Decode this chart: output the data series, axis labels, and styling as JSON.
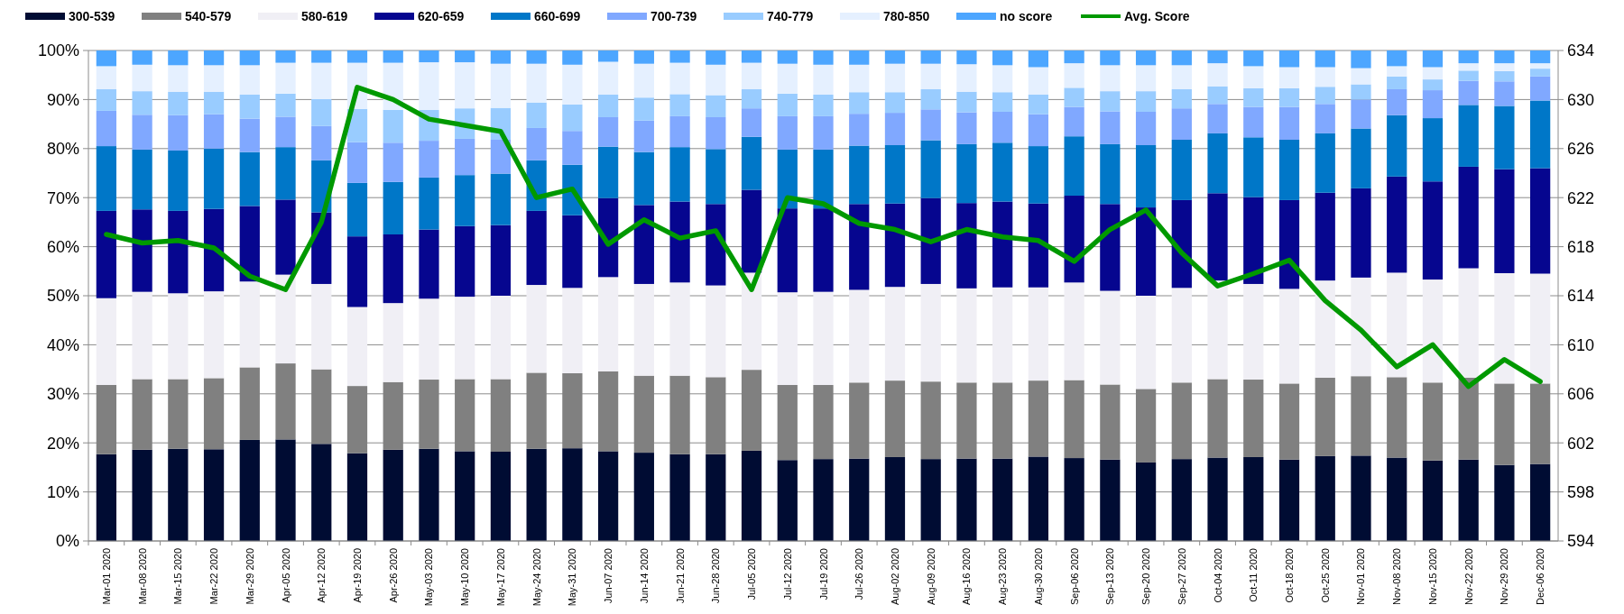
{
  "chart_data": {
    "type": "bar",
    "stacked": true,
    "grid": "y",
    "legend": "top",
    "categories": [
      "Mar-01 2020",
      "Mar-08 2020",
      "Mar-15 2020",
      "Mar-22 2020",
      "Mar-29 2020",
      "Apr-05 2020",
      "Apr-12 2020",
      "Apr-19 2020",
      "Apr-26 2020",
      "May-03 2020",
      "May-10 2020",
      "May-17 2020",
      "May-24 2020",
      "May-31 2020",
      "Jun-07 2020",
      "Jun-14 2020",
      "Jun-21 2020",
      "Jun-28 2020",
      "Jul-05 2020",
      "Jul-12 2020",
      "Jul-19 2020",
      "Jul-26 2020",
      "Aug-02 2020",
      "Aug-09 2020",
      "Aug-16 2020",
      "Aug-23 2020",
      "Aug-30 2020",
      "Sep-06 2020",
      "Sep-13 2020",
      "Sep-20 2020",
      "Sep-27 2020",
      "Oct-04 2020",
      "Oct-11 2020",
      "Oct-18 2020",
      "Oct-25 2020",
      "Nov-01 2020",
      "Nov-08 2020",
      "Nov-15 2020",
      "Nov-22 2020",
      "Nov-29 2020",
      "Dec-06 2020"
    ],
    "ylim": [
      0,
      100
    ],
    "yticks": [
      {
        "value": 0,
        "label": "0%"
      },
      {
        "value": 10,
        "label": "10%"
      },
      {
        "value": 20,
        "label": "20%"
      },
      {
        "value": 30,
        "label": "30%"
      },
      {
        "value": 40,
        "label": "40%"
      },
      {
        "value": 50,
        "label": "50%"
      },
      {
        "value": 60,
        "label": "60%"
      },
      {
        "value": 70,
        "label": "70%"
      },
      {
        "value": 80,
        "label": "80%"
      },
      {
        "value": 90,
        "label": "90%"
      },
      {
        "value": 100,
        "label": "100%"
      }
    ],
    "y2lim": [
      594,
      634
    ],
    "y2ticks": [
      594,
      598,
      602,
      606,
      610,
      614,
      618,
      622,
      626,
      630,
      634
    ],
    "series": [
      {
        "name": "300-539",
        "color": "#000c33",
        "values": [
          17.7,
          18.6,
          18.8,
          18.7,
          20.6,
          20.7,
          19.8,
          17.9,
          18.6,
          18.8,
          18.3,
          18.2,
          18.8,
          18.9,
          18.3,
          18.0,
          17.7,
          17.7,
          18.4,
          16.5,
          16.7,
          16.8,
          17.1,
          16.7,
          16.8,
          16.8,
          17.2,
          16.9,
          16.6,
          16.0,
          16.7,
          17.0,
          17.1,
          16.6,
          17.3,
          17.4,
          17.0,
          16.4,
          16.6,
          15.5,
          15.7
        ]
      },
      {
        "name": "540-579",
        "color": "#808080",
        "values": [
          14.1,
          14.4,
          14.2,
          14.5,
          14.8,
          15.5,
          15.2,
          13.7,
          13.8,
          14.1,
          14.7,
          14.8,
          15.5,
          15.3,
          16.3,
          15.7,
          16.0,
          15.7,
          16.5,
          15.3,
          15.1,
          15.5,
          15.6,
          15.8,
          15.5,
          15.5,
          15.5,
          15.9,
          15.3,
          15.0,
          15.6,
          16.0,
          15.8,
          15.5,
          16.0,
          16.2,
          16.4,
          15.9,
          16.7,
          16.6,
          16.4
        ]
      },
      {
        "name": "580-619",
        "color": "#f0eff5",
        "values": [
          17.7,
          17.8,
          17.5,
          17.7,
          17.5,
          18.1,
          17.4,
          16.1,
          16.1,
          16.5,
          16.8,
          17.0,
          17.9,
          17.4,
          19.2,
          18.7,
          19.0,
          18.7,
          19.8,
          18.9,
          19.0,
          18.9,
          19.1,
          19.9,
          19.2,
          19.4,
          19.0,
          19.9,
          19.1,
          19.0,
          19.3,
          20.1,
          19.5,
          19.3,
          19.8,
          20.1,
          21.3,
          21.0,
          22.3,
          22.5,
          22.4
        ]
      },
      {
        "name": "620-659",
        "color": "#06068f",
        "values": [
          17.8,
          16.8,
          16.8,
          16.8,
          15.4,
          15.3,
          14.6,
          14.4,
          14.0,
          14.1,
          14.4,
          14.4,
          15.1,
          14.8,
          16.1,
          16.1,
          16.5,
          16.6,
          16.9,
          17.1,
          17.0,
          17.5,
          17.0,
          17.5,
          17.4,
          17.5,
          17.1,
          17.7,
          17.7,
          18.0,
          17.9,
          17.8,
          17.7,
          18.1,
          17.9,
          18.2,
          19.6,
          20.0,
          20.7,
          21.2,
          21.5
        ]
      },
      {
        "name": "660-699",
        "color": "#0077c8",
        "values": [
          13.2,
          12.2,
          12.3,
          12.3,
          11.0,
          10.7,
          10.6,
          10.9,
          10.7,
          10.6,
          10.4,
          10.5,
          10.3,
          10.3,
          10.5,
          10.8,
          11.1,
          11.2,
          10.8,
          12.0,
          12.0,
          11.9,
          11.9,
          11.8,
          12.0,
          12.0,
          11.7,
          12.1,
          12.2,
          12.7,
          12.3,
          12.2,
          12.2,
          12.3,
          12.1,
          12.2,
          12.5,
          12.9,
          12.6,
          12.9,
          13.8
        ]
      },
      {
        "name": "700-739",
        "color": "#80a8ff",
        "values": [
          7.2,
          7.1,
          7.2,
          7.0,
          6.8,
          6.2,
          7.0,
          8.3,
          8.0,
          7.5,
          7.4,
          6.9,
          6.6,
          6.9,
          6.0,
          6.4,
          6.3,
          6.5,
          5.8,
          6.8,
          6.8,
          6.5,
          6.6,
          6.3,
          6.5,
          6.3,
          6.5,
          6.0,
          6.7,
          6.8,
          6.4,
          6.0,
          6.2,
          6.7,
          6.0,
          5.9,
          5.3,
          5.7,
          4.9,
          5.0,
          4.9
        ]
      },
      {
        "name": "740-779",
        "color": "#99ccff",
        "values": [
          4.4,
          4.8,
          4.8,
          4.6,
          4.9,
          4.7,
          5.5,
          6.8,
          6.7,
          6.3,
          6.2,
          6.5,
          5.2,
          5.4,
          4.6,
          4.7,
          4.5,
          4.5,
          3.9,
          4.6,
          4.4,
          4.4,
          4.2,
          4.1,
          4.2,
          4.0,
          4.0,
          3.9,
          4.1,
          4.2,
          3.9,
          3.6,
          3.8,
          3.8,
          3.5,
          3.1,
          2.6,
          2.2,
          2.1,
          2.1,
          1.6
        ]
      },
      {
        "name": "780-850",
        "color": "#e5f0ff",
        "values": [
          4.7,
          5.4,
          5.4,
          5.4,
          6.0,
          6.3,
          7.4,
          9.4,
          9.6,
          9.7,
          9.4,
          9.0,
          7.9,
          8.1,
          6.7,
          6.9,
          6.4,
          6.2,
          5.4,
          6.1,
          6.1,
          5.6,
          5.8,
          5.2,
          5.6,
          5.5,
          5.6,
          5.0,
          5.3,
          5.3,
          4.9,
          4.7,
          4.5,
          4.3,
          4.0,
          3.3,
          2.1,
          2.5,
          1.5,
          1.6,
          1.1
        ]
      },
      {
        "name": "no score",
        "color": "#4da6ff",
        "values": [
          3.2,
          2.9,
          3.0,
          3.0,
          3.0,
          2.5,
          2.5,
          2.5,
          2.5,
          2.4,
          2.4,
          2.7,
          2.7,
          2.9,
          2.3,
          2.7,
          2.5,
          2.9,
          2.5,
          2.7,
          2.9,
          2.9,
          2.7,
          2.7,
          2.8,
          3.0,
          3.4,
          2.6,
          3.0,
          3.0,
          3.0,
          2.6,
          3.2,
          3.4,
          3.4,
          3.6,
          3.2,
          3.4,
          2.6,
          2.6,
          2.6
        ]
      },
      {
        "name": "Avg. Score",
        "type": "line",
        "axis": "y2",
        "color": "#009900",
        "line_style": "solid",
        "marker": "none",
        "values": [
          619.0,
          618.3,
          618.5,
          617.9,
          615.6,
          614.5,
          620.0,
          631.0,
          630.0,
          628.4,
          627.9,
          627.4,
          622.0,
          622.7,
          618.2,
          620.2,
          618.7,
          619.3,
          614.5,
          622.0,
          621.5,
          619.9,
          619.4,
          618.4,
          619.4,
          618.8,
          618.5,
          616.8,
          619.4,
          621.0,
          617.5,
          614.8,
          615.8,
          616.9,
          613.6,
          611.2,
          608.2,
          610.0,
          606.6,
          608.8,
          607.0
        ]
      }
    ]
  }
}
